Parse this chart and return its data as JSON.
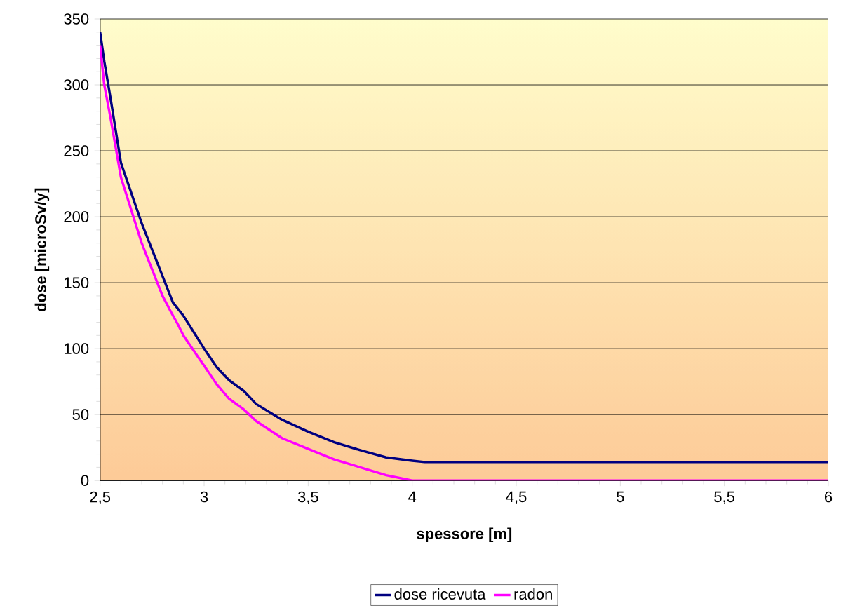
{
  "chart_data": {
    "type": "line",
    "xlabel": "spessore [m]",
    "ylabel": "dose [microSv/y]",
    "xlim": [
      2.5,
      6
    ],
    "ylim": [
      0,
      350
    ],
    "xticks": [
      {
        "value": 2.5,
        "label": "2,5"
      },
      3,
      {
        "value": 3.5,
        "label": "3,5"
      },
      4,
      {
        "value": 4.5,
        "label": "4,5"
      },
      5,
      {
        "value": 5.5,
        "label": "5,5"
      },
      6
    ],
    "yticks": [
      0,
      50,
      100,
      150,
      200,
      250,
      300,
      350
    ],
    "grid": "y",
    "legend": "bottom",
    "marker": "none",
    "line_style": "solid",
    "series": [
      {
        "name": "dose ricevuta",
        "color": "#000080",
        "x": [
          2.5,
          2.52,
          2.55,
          2.6,
          2.7,
          2.8,
          2.85,
          2.9,
          3.0,
          3.06,
          3.12,
          3.19,
          3.25,
          3.375,
          3.5,
          3.625,
          3.75,
          3.875,
          4.0,
          4.06,
          6
        ],
        "values": [
          340,
          318,
          290,
          241,
          195,
          155,
          135,
          125,
          100,
          86,
          76,
          68,
          58,
          46,
          37,
          29,
          23,
          17.5,
          15,
          14,
          14
        ]
      },
      {
        "name": "radon",
        "color": "#ff00ff",
        "x": [
          2.5,
          2.52,
          2.55,
          2.6,
          2.7,
          2.8,
          2.84,
          2.875,
          2.9,
          3.0,
          3.06,
          3.12,
          3.19,
          3.25,
          3.375,
          3.5,
          3.625,
          3.75,
          3.875,
          4.0,
          6
        ],
        "values": [
          330,
          300,
          275,
          230,
          180,
          140,
          128,
          118,
          110,
          87,
          73,
          62,
          54,
          45,
          32,
          24,
          16,
          10,
          4,
          0,
          0
        ]
      }
    ]
  }
}
